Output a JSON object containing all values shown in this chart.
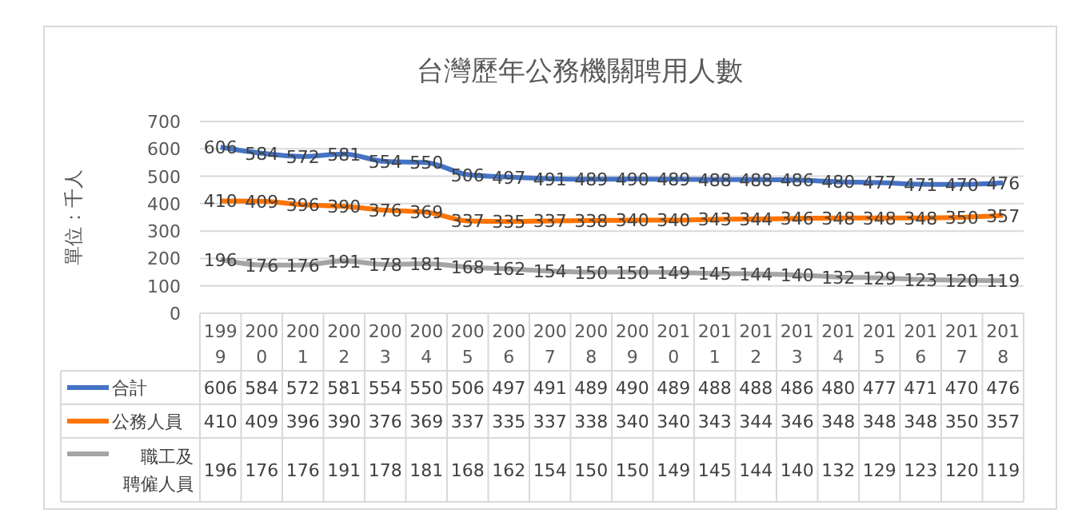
{
  "chart_data": {
    "type": "line",
    "title": "台灣歷年公務機關聘用人數",
    "ylabel": "單位：千人",
    "categories": [
      "1999",
      "2000",
      "2001",
      "2002",
      "2003",
      "2004",
      "2005",
      "2006",
      "2007",
      "2008",
      "2009",
      "2010",
      "2011",
      "2012",
      "2013",
      "2014",
      "2015",
      "2016",
      "2017",
      "2018"
    ],
    "series": [
      {
        "name": "合計",
        "color": "#4472c4",
        "values": [
          606,
          584,
          572,
          581,
          554,
          550,
          506,
          497,
          491,
          489,
          490,
          489,
          488,
          488,
          486,
          480,
          477,
          471,
          470,
          476
        ],
        "value_labels": [
          "606",
          "584",
          "572",
          "581",
          "554",
          "550",
          "506",
          "497",
          "491",
          "489",
          "490",
          "489",
          "488",
          "488",
          "486",
          "480",
          "477",
          "471",
          "470",
          "476"
        ]
      },
      {
        "name": "公務人員",
        "color": "#ff7300",
        "values": [
          410,
          409,
          396,
          390,
          376,
          369,
          337,
          335,
          337,
          338,
          340,
          340,
          343,
          344,
          346,
          348,
          348,
          348,
          350,
          357
        ],
        "value_labels": [
          "410",
          "409",
          "396",
          "390",
          "376",
          "369",
          "337",
          "335",
          "337",
          "338",
          "340",
          "340",
          "343",
          "344",
          "346",
          "348",
          "348",
          "348",
          "350",
          "357"
        ]
      },
      {
        "name": "職工及聘僱人員",
        "color": "#a5a5a5",
        "values": [
          196,
          176,
          176,
          191,
          178,
          181,
          168,
          162,
          154,
          150,
          150,
          149,
          145,
          144,
          140,
          132,
          129,
          123,
          120,
          119
        ],
        "value_labels": [
          "196",
          "176",
          "176",
          "191",
          "178",
          "181",
          "168",
          "162",
          "154",
          "150",
          "150",
          "149",
          "145",
          "144",
          "140",
          "132",
          "129",
          "123",
          "120",
          "119"
        ]
      }
    ],
    "ylim": [
      0,
      700
    ],
    "yticks": [
      0,
      100,
      200,
      300,
      400,
      500,
      600,
      700
    ],
    "grid": "y",
    "data_labels": true,
    "legend": "bottom",
    "marker": "none",
    "line_style": "solid"
  }
}
